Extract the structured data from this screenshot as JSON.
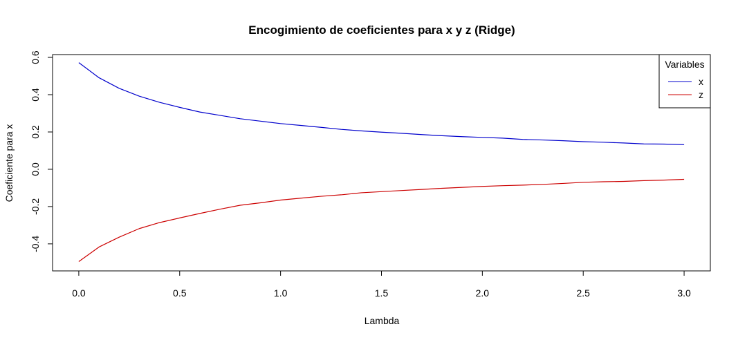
{
  "chart_data": {
    "type": "line",
    "title": "Encogimiento de coeficientes para x y z (Ridge)",
    "xlabel": "Lambda",
    "ylabel": "Coeficiente para x",
    "xlim": [
      -0.13,
      3.13
    ],
    "ylim": [
      -0.545,
      0.615
    ],
    "x_ticks": [
      0.0,
      0.5,
      1.0,
      1.5,
      2.0,
      2.5,
      3.0
    ],
    "x_tick_labels": [
      "0.0",
      "0.5",
      "1.0",
      "1.5",
      "2.0",
      "2.5",
      "3.0"
    ],
    "y_ticks": [
      -0.4,
      -0.2,
      0.0,
      0.2,
      0.4,
      0.6
    ],
    "y_tick_labels": [
      "-0.4",
      "-0.2",
      "0.0",
      "0.2",
      "0.4",
      "0.6"
    ],
    "grid": false,
    "legend": {
      "title": "Variables",
      "position": "top-right"
    },
    "x": [
      0.0,
      0.1,
      0.2,
      0.3,
      0.4,
      0.5,
      0.6,
      0.7,
      0.8,
      0.9,
      1.0,
      1.1,
      1.2,
      1.3,
      1.4,
      1.5,
      1.6,
      1.7,
      1.8,
      1.9,
      2.0,
      2.1,
      2.2,
      2.3,
      2.4,
      2.5,
      2.6,
      2.7,
      2.8,
      2.9,
      3.0
    ],
    "series": [
      {
        "name": "x",
        "color": "#0000cc",
        "values": [
          0.572,
          0.491,
          0.434,
          0.392,
          0.359,
          0.332,
          0.307,
          0.289,
          0.271,
          0.258,
          0.245,
          0.235,
          0.225,
          0.214,
          0.206,
          0.199,
          0.193,
          0.186,
          0.18,
          0.175,
          0.171,
          0.167,
          0.16,
          0.157,
          0.153,
          0.148,
          0.145,
          0.141,
          0.136,
          0.135,
          0.132
        ]
      },
      {
        "name": "z",
        "color": "#cc0000",
        "values": [
          -0.495,
          -0.417,
          -0.364,
          -0.318,
          -0.286,
          -0.261,
          -0.237,
          -0.214,
          -0.193,
          -0.18,
          -0.165,
          -0.155,
          -0.145,
          -0.137,
          -0.126,
          -0.12,
          -0.114,
          -0.108,
          -0.102,
          -0.097,
          -0.092,
          -0.088,
          -0.085,
          -0.081,
          -0.076,
          -0.07,
          -0.067,
          -0.065,
          -0.061,
          -0.058,
          -0.054
        ]
      }
    ]
  }
}
